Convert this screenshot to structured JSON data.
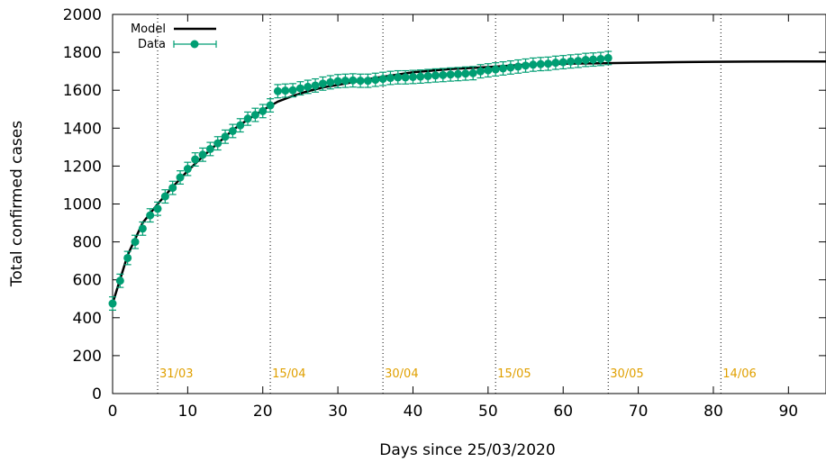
{
  "chart_data": {
    "type": "line",
    "title": "",
    "xlabel": "Days since 25/03/2020",
    "ylabel": "Total confirmed cases",
    "xlim": [
      0,
      95
    ],
    "ylim": [
      0,
      2000
    ],
    "x_ticks": [
      0,
      10,
      20,
      30,
      40,
      50,
      60,
      70,
      80,
      90
    ],
    "y_ticks": [
      0,
      200,
      400,
      600,
      800,
      1000,
      1200,
      1400,
      1600,
      1800,
      2000
    ],
    "grid": false,
    "legend_position": "top-left",
    "colors": {
      "model": "#000000",
      "data": "#009e73",
      "date_label": "#e0a000"
    },
    "date_markers": [
      {
        "x": 6,
        "label": "31/03"
      },
      {
        "x": 21,
        "label": "15/04"
      },
      {
        "x": 36,
        "label": "30/04"
      },
      {
        "x": 51,
        "label": "15/05"
      },
      {
        "x": 66,
        "label": "30/05"
      },
      {
        "x": 81,
        "label": "14/06"
      }
    ],
    "series": [
      {
        "name": "Model",
        "style": "line",
        "x": [
          0,
          2,
          4,
          6,
          8,
          10,
          12,
          14,
          16,
          18,
          20,
          22,
          24,
          26,
          28,
          30,
          35,
          40,
          45,
          50,
          55,
          60,
          65,
          70,
          75,
          80,
          85,
          90,
          95
        ],
        "y": [
          475,
          730,
          900,
          1000,
          1090,
          1175,
          1250,
          1320,
          1390,
          1445,
          1495,
          1540,
          1570,
          1595,
          1615,
          1628,
          1665,
          1695,
          1712,
          1722,
          1735,
          1740,
          1742,
          1745,
          1748,
          1750,
          1751,
          1752,
          1752
        ]
      },
      {
        "name": "Data",
        "style": "points-errorbars",
        "x": [
          0,
          1,
          2,
          3,
          4,
          5,
          6,
          7,
          8,
          9,
          10,
          11,
          12,
          13,
          14,
          15,
          16,
          17,
          18,
          19,
          20,
          21,
          22,
          23,
          24,
          25,
          26,
          27,
          28,
          29,
          30,
          31,
          32,
          33,
          34,
          35,
          36,
          37,
          38,
          39,
          40,
          41,
          42,
          43,
          44,
          45,
          46,
          47,
          48,
          49,
          50,
          51,
          52,
          53,
          54,
          55,
          56,
          57,
          58,
          59,
          60,
          61,
          62,
          63,
          64,
          65,
          66
        ],
        "y": [
          475,
          595,
          715,
          800,
          870,
          940,
          975,
          1040,
          1085,
          1140,
          1185,
          1235,
          1260,
          1290,
          1320,
          1355,
          1385,
          1415,
          1450,
          1470,
          1490,
          1520,
          1595,
          1598,
          1600,
          1610,
          1618,
          1625,
          1635,
          1642,
          1648,
          1650,
          1652,
          1650,
          1650,
          1655,
          1660,
          1665,
          1668,
          1668,
          1670,
          1672,
          1675,
          1678,
          1680,
          1683,
          1685,
          1688,
          1690,
          1700,
          1705,
          1710,
          1715,
          1720,
          1725,
          1730,
          1735,
          1738,
          1740,
          1745,
          1748,
          1752,
          1755,
          1760,
          1762,
          1765,
          1770
        ],
        "error": 35
      }
    ]
  }
}
